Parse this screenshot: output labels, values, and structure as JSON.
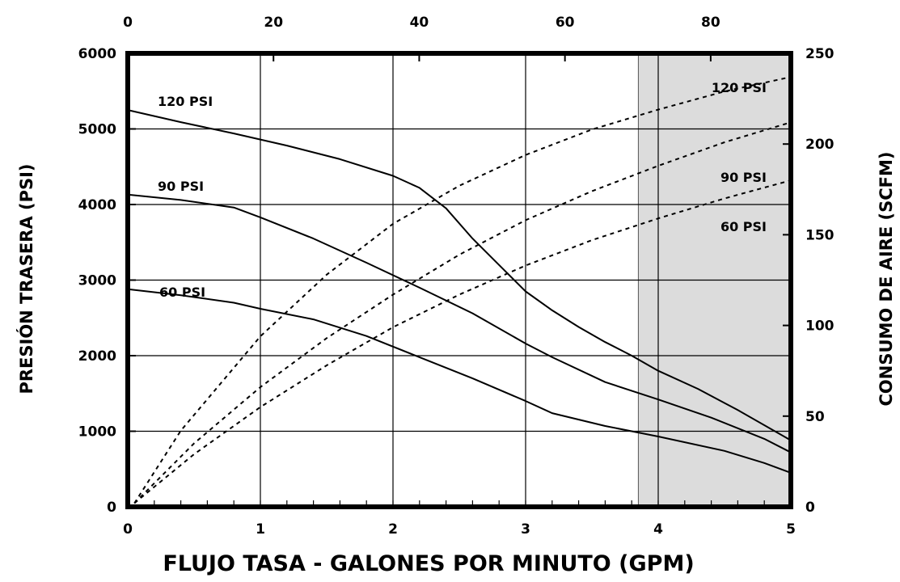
{
  "chart_data": {
    "type": "line",
    "xlabel": "FLUJO TASA - GALONES POR MINUTO (GPM)",
    "ylabel": "PRESIÓN TRASERA  (PSI)",
    "y2label": "CONSUMO DE AIRE (SCFM)",
    "xlim": [
      0,
      5
    ],
    "ylim": [
      0,
      6000
    ],
    "y2lim": [
      0,
      250
    ],
    "x2lim": [
      0,
      91
    ],
    "x_ticks": [
      "0",
      "1",
      "2",
      "3",
      "4",
      "5"
    ],
    "x2_ticks": [
      "0",
      "20",
      "40",
      "60",
      "80"
    ],
    "y_ticks": [
      "0",
      "1000",
      "2000",
      "3000",
      "4000",
      "5000",
      "6000"
    ],
    "y2_ticks": [
      "0",
      "50",
      "100",
      "150",
      "200",
      "250"
    ],
    "grid": true,
    "shaded_region": {
      "x_from": 3.85,
      "x_to": 5,
      "color": "#dcdcdc"
    },
    "pressure_series": [
      {
        "name": "120 PSI",
        "x": [
          0,
          0.4,
          0.8,
          1.2,
          1.6,
          2.0,
          2.2,
          2.4,
          2.6,
          2.8,
          3.0,
          3.2,
          3.4,
          3.6,
          3.8,
          4.0,
          4.3,
          4.6,
          5.0
        ],
        "y": [
          5250,
          5090,
          4940,
          4780,
          4600,
          4380,
          4220,
          3950,
          3550,
          3200,
          2850,
          2600,
          2380,
          2180,
          2000,
          1800,
          1560,
          1280,
          880
        ]
      },
      {
        "name": "90 PSI",
        "x": [
          0,
          0.4,
          0.8,
          1.0,
          1.4,
          1.8,
          2.2,
          2.6,
          3.0,
          3.2,
          3.6,
          4.0,
          4.4,
          4.8,
          5.0
        ],
        "y": [
          4130,
          4060,
          3960,
          3830,
          3550,
          3230,
          2900,
          2560,
          2160,
          1980,
          1650,
          1420,
          1180,
          900,
          720
        ]
      },
      {
        "name": "60 PSI",
        "x": [
          0,
          0.4,
          0.8,
          1.0,
          1.4,
          1.8,
          2.2,
          2.6,
          3.0,
          3.2,
          3.6,
          4.0,
          4.5,
          4.8,
          5.0
        ],
        "y": [
          2880,
          2800,
          2700,
          2620,
          2480,
          2260,
          1980,
          1700,
          1400,
          1240,
          1070,
          930,
          740,
          580,
          450
        ]
      }
    ],
    "air_series": [
      {
        "name": "120 PSI",
        "x": [
          0.05,
          0.4,
          1.0,
          1.5,
          2.0,
          2.5,
          3.0,
          3.5,
          4.0,
          4.5,
          5.0
        ],
        "y": [
          2,
          42,
          94,
          128,
          156,
          177,
          194,
          208,
          219,
          229,
          237
        ]
      },
      {
        "name": "90 PSI",
        "x": [
          0.05,
          0.5,
          1.0,
          1.5,
          2.0,
          2.5,
          3.0,
          3.5,
          4.0,
          4.5,
          5.0
        ],
        "y": [
          2,
          35,
          66,
          93,
          117,
          139,
          158,
          174,
          188,
          201,
          212
        ]
      },
      {
        "name": "60 PSI",
        "x": [
          0.05,
          0.5,
          1.0,
          1.5,
          2.0,
          2.5,
          3.0,
          3.5,
          4.0,
          4.5,
          5.0
        ],
        "y": [
          2,
          29,
          55,
          78,
          99,
          117,
          133,
          147,
          159,
          170,
          180
        ]
      }
    ]
  }
}
